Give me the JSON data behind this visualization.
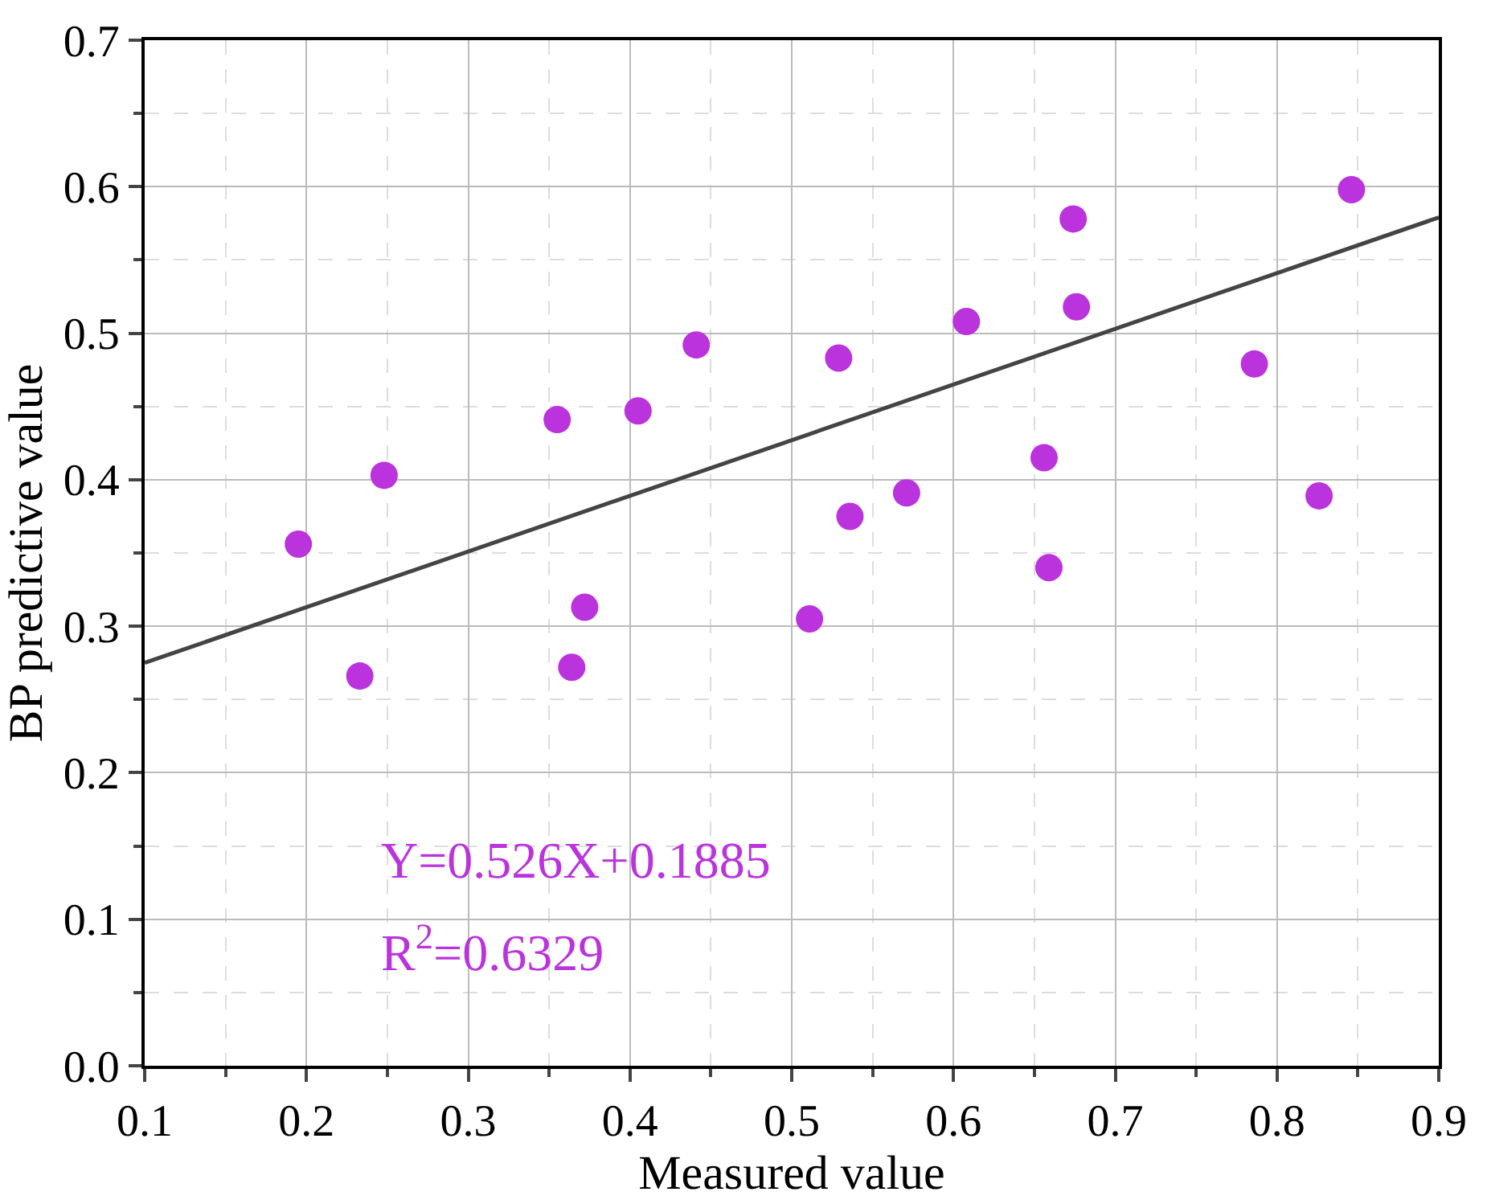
{
  "chart_data": {
    "type": "scatter",
    "xlabel": "Measured value",
    "ylabel": "BP predictive value",
    "xlim": [
      0.1,
      0.9
    ],
    "xticks": [
      0.1,
      0.2,
      0.3,
      0.4,
      0.5,
      0.6,
      0.7,
      0.8,
      0.9
    ],
    "ylim": [
      0.0,
      0.7
    ],
    "yticks": [
      {
        "value": 0.0,
        "label": "0.0"
      },
      0.1,
      0.2,
      0.3,
      0.4,
      0.5,
      0.6,
      0.7
    ],
    "grid": true,
    "series": [
      {
        "marker": "circle",
        "color": "#bb33dd",
        "x": [
          0.195,
          0.233,
          0.248,
          0.355,
          0.364,
          0.372,
          0.405,
          0.441,
          0.511,
          0.529,
          0.536,
          0.571,
          0.608,
          0.656,
          0.659,
          0.674,
          0.676,
          0.786,
          0.826,
          0.846
        ],
        "values": [
          0.356,
          0.266,
          0.403,
          0.441,
          0.272,
          0.313,
          0.447,
          0.492,
          0.305,
          0.483,
          0.375,
          0.391,
          0.508,
          0.415,
          0.34,
          0.578,
          0.518,
          0.479,
          0.389,
          0.598
        ]
      },
      {
        "type": "line",
        "marker": "none",
        "color": "#444444",
        "x": [
          0.1,
          0.9
        ],
        "values": [
          0.275,
          0.579
        ]
      }
    ],
    "annotations": [
      "Y=0.526X+0.1885",
      "R$^{2}$=0.6329"
    ]
  }
}
